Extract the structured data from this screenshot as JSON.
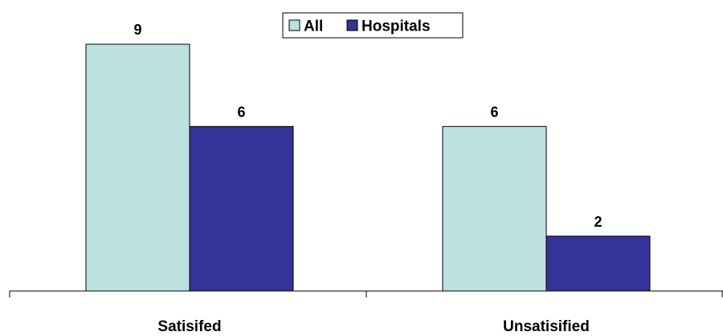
{
  "chart_data": {
    "type": "bar",
    "categories": [
      "Satisifed",
      "Unsatisified"
    ],
    "series": [
      {
        "name": "All",
        "values": [
          9,
          6
        ],
        "color": "#BDE0E1"
      },
      {
        "name": "Hospitals",
        "values": [
          6,
          2
        ],
        "color": "#333399"
      }
    ],
    "title": "",
    "xlabel": "",
    "ylabel": "",
    "ylim": [
      0,
      9
    ],
    "grid": false,
    "legend_position": "top-center",
    "data_labels": true,
    "bar_outline_color": "#000000",
    "axis_color": "#000000"
  }
}
